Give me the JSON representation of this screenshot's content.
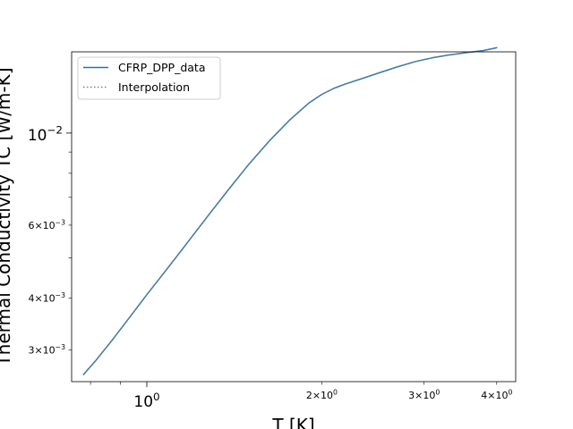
{
  "chart_data": {
    "type": "line",
    "title": "",
    "xlabel": "T [K]",
    "ylabel": "Thermal Conductivity TC [W/m-K]",
    "xscale": "log",
    "yscale": "log",
    "xlim": [
      0.7423,
      4.3124
    ],
    "ylim": [
      0.002519,
      0.01569
    ],
    "grid": false,
    "legend_position": "upper-left",
    "x_major_ticks": [
      {
        "value": 1.0,
        "base": "10",
        "exp": "0"
      }
    ],
    "x_minor_ticks": [
      {
        "value": 2.0,
        "mant": "2",
        "base": "10",
        "exp": "0"
      },
      {
        "value": 3.0,
        "mant": "3",
        "base": "10",
        "exp": "0"
      },
      {
        "value": 4.0,
        "mant": "4",
        "base": "10",
        "exp": "0"
      }
    ],
    "x_minor_unlabeled": [
      0.8,
      0.9
    ],
    "y_major_ticks": [
      {
        "value": 0.01,
        "base": "10",
        "exp": "−2"
      }
    ],
    "y_minor_ticks": [
      {
        "value": 0.003,
        "mant": "3",
        "base": "10",
        "exp": "−3"
      },
      {
        "value": 0.004,
        "mant": "4",
        "base": "10",
        "exp": "−3"
      },
      {
        "value": 0.006,
        "mant": "6",
        "base": "10",
        "exp": "−3"
      }
    ],
    "y_minor_unlabeled": [
      0.005,
      0.007,
      0.008,
      0.009
    ],
    "series": [
      {
        "name": "CFRP_DPP_data",
        "style": "solid",
        "color": "#1f77b4",
        "x": [
          0.778,
          0.82,
          0.87,
          0.93,
          1.0,
          1.08,
          1.17,
          1.27,
          1.38,
          1.5,
          1.63,
          1.76,
          1.9,
          2.0,
          2.1,
          2.2,
          2.35,
          2.5,
          2.7,
          2.9,
          3.1,
          3.3,
          3.55,
          3.8,
          4.0
        ],
        "y": [
          0.00262,
          0.00285,
          0.00316,
          0.00357,
          0.00408,
          0.00468,
          0.00541,
          0.00628,
          0.00729,
          0.00843,
          0.00962,
          0.01074,
          0.01181,
          0.01239,
          0.01282,
          0.01314,
          0.01354,
          0.01394,
          0.01444,
          0.01487,
          0.01518,
          0.01541,
          0.01562,
          0.01581,
          0.01605
        ]
      },
      {
        "name": "Interpolation",
        "style": "dotted",
        "color": "#7f7f7f",
        "x": [
          0.778,
          0.82,
          0.87,
          0.93,
          1.0,
          1.08,
          1.17,
          1.27,
          1.38,
          1.5,
          1.63,
          1.76,
          1.9,
          2.0,
          2.1,
          2.2,
          2.35,
          2.5,
          2.7,
          2.9,
          3.1,
          3.3,
          3.55,
          3.8,
          4.0
        ],
        "y": [
          0.00262,
          0.00285,
          0.00316,
          0.00357,
          0.00408,
          0.00468,
          0.00541,
          0.00628,
          0.00729,
          0.00843,
          0.00962,
          0.01074,
          0.01181,
          0.01239,
          0.01282,
          0.01314,
          0.01354,
          0.01394,
          0.01444,
          0.01487,
          0.01518,
          0.01541,
          0.01562,
          0.01581,
          0.01605
        ]
      }
    ]
  }
}
